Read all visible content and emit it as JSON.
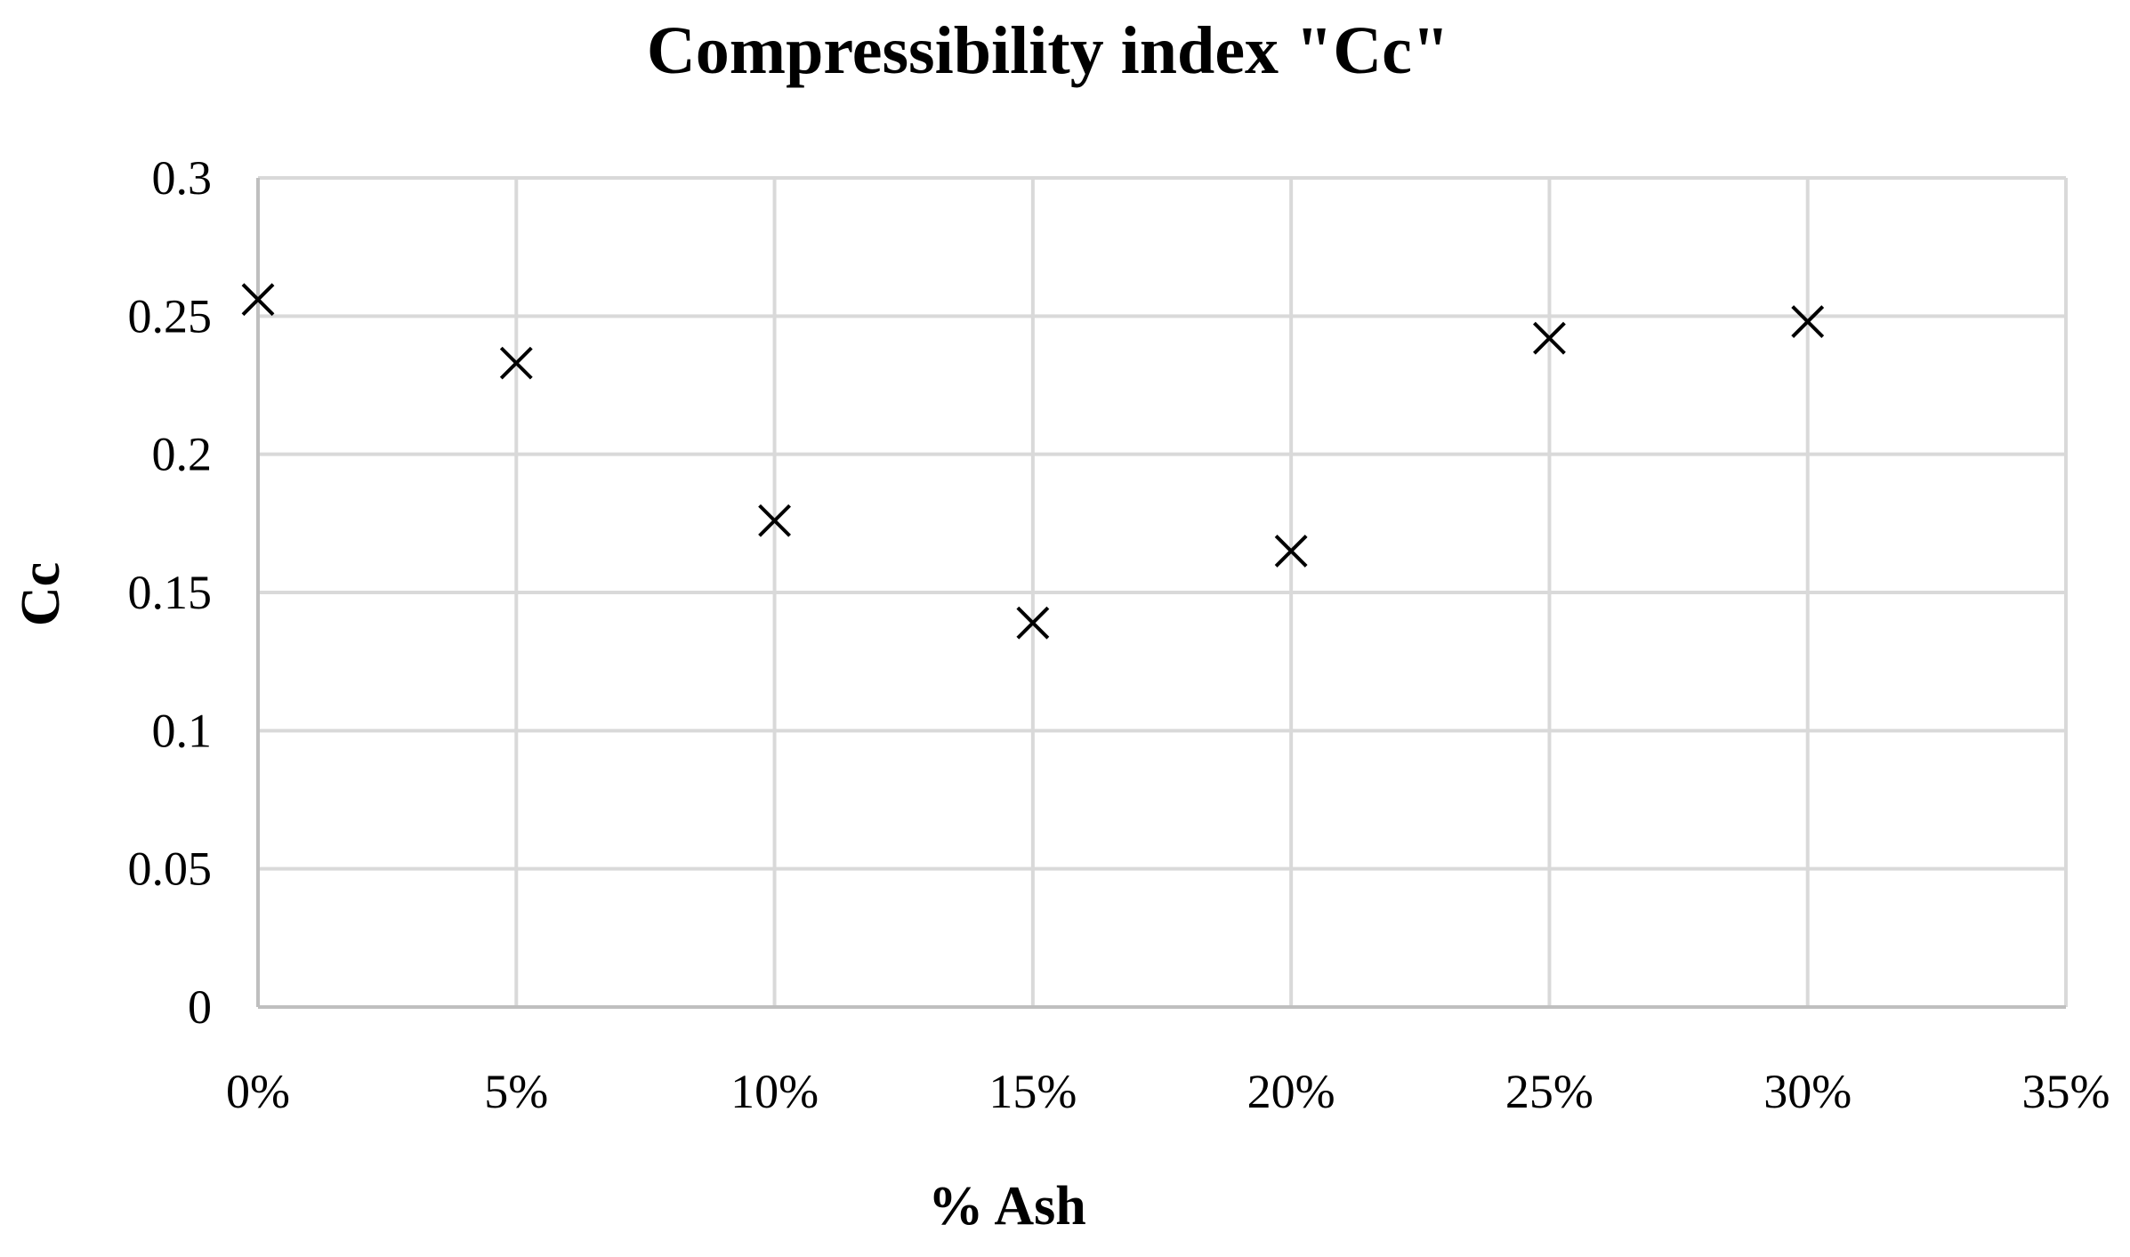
{
  "chart_data": {
    "type": "scatter",
    "title": "Compressibility index \"Cc\"",
    "xlabel": "% Ash",
    "ylabel": "Cc",
    "xlim": [
      0,
      0.35
    ],
    "ylim": [
      0,
      0.3
    ],
    "x_ticks": [
      0,
      0.05,
      0.1,
      0.15,
      0.2,
      0.25,
      0.3,
      0.35
    ],
    "x_tick_labels": [
      "0%",
      "5%",
      "10%",
      "15%",
      "20%",
      "25%",
      "30%",
      "35%"
    ],
    "y_ticks": [
      0,
      0.05,
      0.1,
      0.15,
      0.2,
      0.25,
      0.3
    ],
    "y_tick_labels": [
      "0",
      "0.05",
      "0.1",
      "0.15",
      "0.2",
      "0.25",
      "0.3"
    ],
    "grid": true,
    "legend": "none",
    "marker": "x",
    "marker_color": "#000000",
    "grid_color": "#d9d9d9",
    "series": [
      {
        "x": [
          0,
          0.05,
          0.1,
          0.15,
          0.2,
          0.25,
          0.3
        ],
        "y": [
          0.256,
          0.233,
          0.176,
          0.139,
          0.165,
          0.242,
          0.248
        ]
      }
    ]
  }
}
